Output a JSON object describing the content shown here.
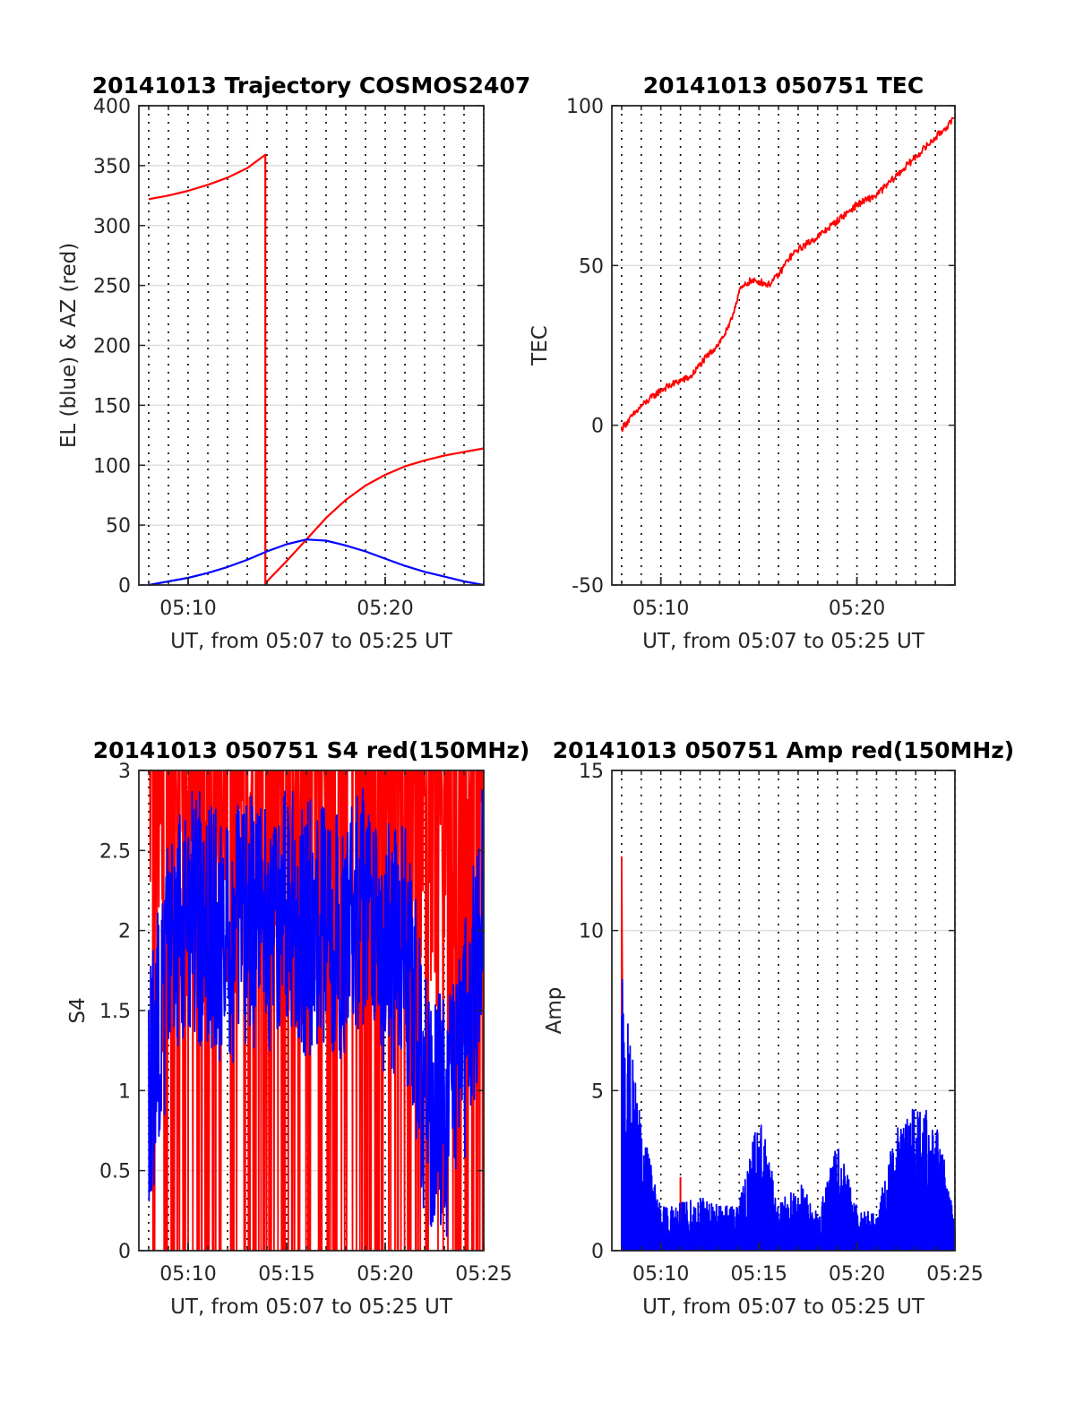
{
  "chart_data": [
    {
      "type": "line",
      "title": "20141013 Trajectory COSMOS2407",
      "xlabel": "UT, from 05:07 to 05:25 UT",
      "ylabel": "EL (blue) & AZ (red)",
      "xlim": [
        "05:07:30",
        "05:25:00"
      ],
      "ylim": [
        0,
        400
      ],
      "xticks": [
        "05:10",
        "05:20"
      ],
      "yticks": [
        0,
        50,
        100,
        150,
        200,
        250,
        300,
        350,
        400
      ],
      "grid": true,
      "series": [
        {
          "color": "#ff0000",
          "x": [
            "05:08",
            "05:09",
            "05:10",
            "05:11",
            "05:12",
            "05:13",
            "05:13:55",
            "05:13:56",
            "05:14",
            "05:15",
            "05:16",
            "05:17",
            "05:18",
            "05:19",
            "05:20",
            "05:21",
            "05:22",
            "05:23",
            "05:24",
            "05:25"
          ],
          "y": [
            322,
            325,
            329,
            334,
            340,
            348,
            359,
            0,
            3,
            20,
            38,
            56,
            71,
            83,
            92,
            99,
            104,
            108,
            111,
            114
          ]
        },
        {
          "color": "#0000ff",
          "x": [
            "05:08",
            "05:09",
            "05:10",
            "05:11",
            "05:12",
            "05:13",
            "05:14",
            "05:15",
            "05:16",
            "05:17",
            "05:18",
            "05:19",
            "05:20",
            "05:21",
            "05:22",
            "05:23",
            "05:24",
            "05:25"
          ],
          "y": [
            0,
            3,
            6,
            10,
            15,
            21,
            28,
            34,
            38,
            37,
            33,
            28,
            22,
            16,
            11,
            7,
            3,
            0
          ]
        }
      ]
    },
    {
      "type": "line",
      "title": "20141013 050751 TEC",
      "xlabel": "UT, from 05:07 to 05:25 UT",
      "ylabel": "TEC",
      "xlim": [
        "05:07:30",
        "05:25:00"
      ],
      "ylim": [
        -50,
        100
      ],
      "xticks": [
        "05:10",
        "05:20"
      ],
      "yticks": [
        -50,
        0,
        50,
        100
      ],
      "grid": true,
      "series": [
        {
          "color": "#ff0000",
          "x": [
            "05:08",
            "05:09",
            "05:10",
            "05:11",
            "05:11:30",
            "05:12",
            "05:13",
            "05:13:30",
            "05:14",
            "05:14:30",
            "05:15",
            "05:15:30",
            "05:16",
            "05:16:30",
            "05:17",
            "05:18",
            "05:19",
            "05:20",
            "05:21",
            "05:22",
            "05:23",
            "05:24",
            "05:25"
          ],
          "y": [
            -1,
            6,
            11,
            14,
            15,
            19,
            26,
            31,
            42,
            45,
            45,
            44,
            47,
            52,
            55,
            59,
            64,
            69,
            72,
            78,
            84,
            90,
            96
          ]
        }
      ]
    },
    {
      "type": "line",
      "title": "20141013 050751 S4 red(150MHz)",
      "xlabel": "UT, from 05:07 to 05:25 UT",
      "ylabel": "S4",
      "xlim": [
        "05:07:30",
        "05:25:00"
      ],
      "ylim": [
        0,
        3
      ],
      "xticks": [
        "05:10",
        "05:15",
        "05:20",
        "05:25"
      ],
      "yticks": [
        0,
        0.5,
        1,
        1.5,
        2,
        2.5,
        3
      ],
      "grid": true,
      "series": [
        {
          "color": "#ff0000",
          "x": [
            "05:08",
            "05:10",
            "05:12",
            "05:14",
            "05:16",
            "05:18",
            "05:20",
            "05:22",
            "05:24",
            "05:25"
          ],
          "y": [
            0.9,
            1.5,
            1.6,
            1.4,
            1.3,
            1.5,
            1.6,
            1.5,
            1.0,
            2.5
          ]
        },
        {
          "color": "#0000ff",
          "x": [
            "05:08",
            "05:09",
            "05:10",
            "05:11",
            "05:12",
            "05:13",
            "05:14",
            "05:15",
            "05:16",
            "05:17",
            "05:18",
            "05:19",
            "05:20",
            "05:21",
            "05:22",
            "05:23",
            "05:24",
            "05:25"
          ],
          "y": [
            0.9,
            1.8,
            2.2,
            2.0,
            1.9,
            2.1,
            2.0,
            2.2,
            2.0,
            2.1,
            1.9,
            2.2,
            1.9,
            1.9,
            1.0,
            0.8,
            1.2,
            2.2
          ]
        }
      ]
    },
    {
      "type": "line",
      "title": "20141013 050751 Amp red(150MHz)",
      "xlabel": "UT, from 05:07 to 05:25 UT",
      "ylabel": "Amp",
      "xlim": [
        "05:07:30",
        "05:25:00"
      ],
      "ylim": [
        0,
        15
      ],
      "xticks": [
        "05:10",
        "05:15",
        "05:20",
        "05:25"
      ],
      "yticks": [
        0,
        5,
        10,
        15
      ],
      "grid": true,
      "series": [
        {
          "color": "#ff0000",
          "x": [
            "05:08:00",
            "05:08:05",
            "05:11:00"
          ],
          "y": [
            12.3,
            7.5,
            2.3
          ]
        },
        {
          "color": "#0000ff",
          "x": [
            "05:08",
            "05:09",
            "05:10",
            "05:11",
            "05:12",
            "05:13",
            "05:14",
            "05:15",
            "05:16",
            "05:17",
            "05:18",
            "05:19",
            "05:20",
            "05:21",
            "05:22",
            "05:23",
            "05:24",
            "05:25"
          ],
          "y": [
            7.5,
            3.5,
            1.2,
            1.3,
            1.5,
            1.2,
            1.3,
            3.9,
            1.3,
            2.0,
            1.0,
            3.0,
            1.2,
            1.0,
            3.5,
            4.0,
            3.8,
            0.9
          ]
        }
      ]
    }
  ]
}
